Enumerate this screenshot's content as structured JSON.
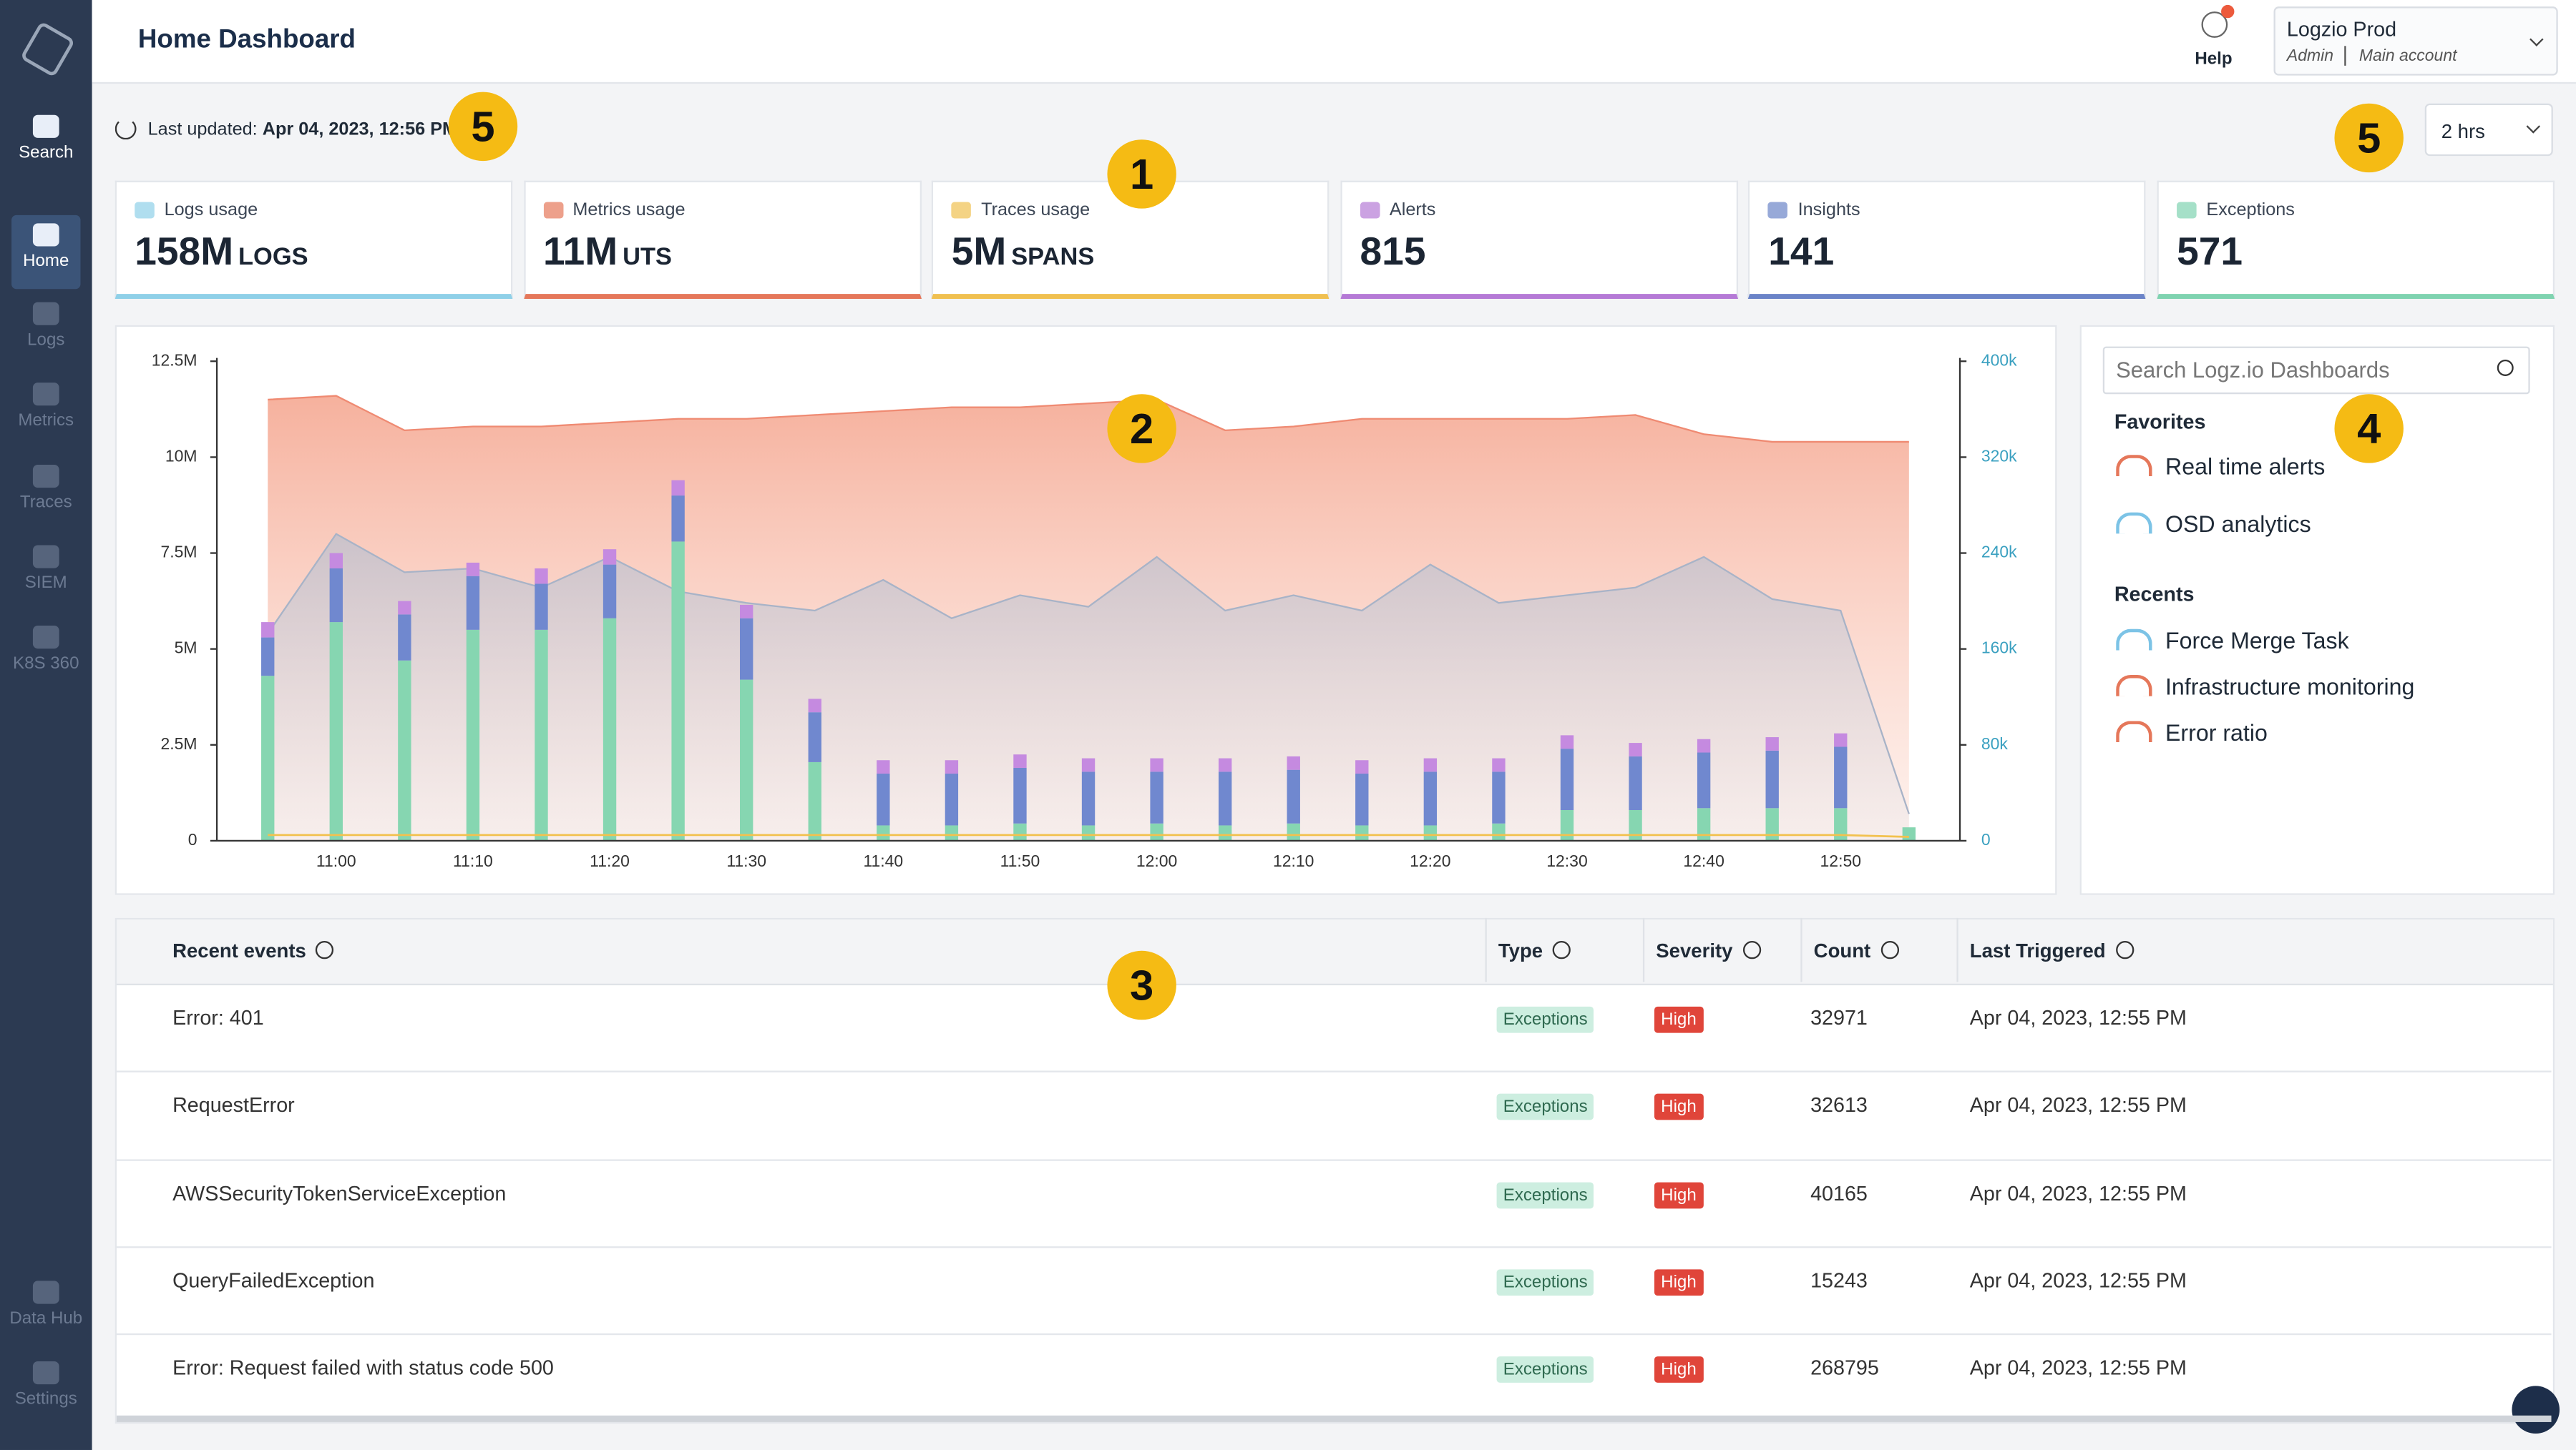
{
  "sidebar": {
    "items": [
      "Search",
      "Home",
      "Logs",
      "Metrics",
      "Traces",
      "SIEM",
      "K8S 360",
      "Data Hub",
      "Settings"
    ]
  },
  "header": {
    "title": "Home Dashboard",
    "help": "Help",
    "account": "Logzio Prod",
    "role": "Admin",
    "account_type": "Main account"
  },
  "toolbar": {
    "last_updated_label": "Last updated:",
    "last_updated": "Apr 04, 2023, 12:56 PM",
    "time_range": "2 hrs"
  },
  "stats": [
    {
      "label": "Logs usage",
      "value": "158M",
      "unit": "LOGS"
    },
    {
      "label": "Metrics usage",
      "value": "11M",
      "unit": "UTS"
    },
    {
      "label": "Traces usage",
      "value": "5M",
      "unit": "SPANS"
    },
    {
      "label": "Alerts",
      "value": "815"
    },
    {
      "label": "Insights",
      "value": "141"
    },
    {
      "label": "Exceptions",
      "value": "571"
    }
  ],
  "chart_data": {
    "type": "bar",
    "stacked": true,
    "categories": [
      null,
      "11:00",
      null,
      "11:10",
      null,
      "11:20",
      null,
      "11:30",
      null,
      "11:40",
      null,
      "11:50",
      null,
      "12:00",
      null,
      "12:10",
      null,
      "12:20",
      null,
      "12:30",
      null,
      "12:40",
      null,
      "12:50",
      null
    ],
    "series": [
      {
        "color": "#86d6b1",
        "values": [
          4300000,
          5700000,
          4700000,
          5500000,
          5500000,
          5800000,
          7800000,
          4200000,
          2050000,
          400000,
          400000,
          450000,
          400000,
          450000,
          400000,
          450000,
          400000,
          400000,
          450000,
          800000,
          800000,
          850000,
          850000,
          850000,
          350000
        ]
      },
      {
        "color": "#7088cf",
        "values": [
          1000000,
          1400000,
          1200000,
          1400000,
          1200000,
          1400000,
          1200000,
          1600000,
          1300000,
          1350000,
          1350000,
          1450000,
          1400000,
          1350000,
          1400000,
          1400000,
          1350000,
          1400000,
          1350000,
          1600000,
          1400000,
          1450000,
          1500000,
          1600000,
          0
        ]
      },
      {
        "color": "#c58ae0",
        "values": [
          400000,
          400000,
          350000,
          350000,
          400000,
          400000,
          400000,
          350000,
          350000,
          350000,
          350000,
          350000,
          350000,
          350000,
          350000,
          350000,
          350000,
          350000,
          350000,
          350000,
          350000,
          350000,
          350000,
          350000,
          0
        ]
      }
    ],
    "areas": [
      {
        "color": "#ef8a72",
        "values": [
          11500000,
          11600000,
          10700000,
          10800000,
          10800000,
          10900000,
          11000000,
          11000000,
          11100000,
          11200000,
          11300000,
          11300000,
          11400000,
          11500000,
          10700000,
          10800000,
          11000000,
          11000000,
          11000000,
          11000000,
          11100000,
          10600000,
          10400000,
          10400000,
          10400000
        ]
      },
      {
        "color": "#a8b3c7",
        "values": [
          5400000,
          8000000,
          7000000,
          7100000,
          6600000,
          7400000,
          6500000,
          6200000,
          6000000,
          6800000,
          5800000,
          6400000,
          6100000,
          7400000,
          6000000,
          6400000,
          6000000,
          7200000,
          6200000,
          6400000,
          6600000,
          7400000,
          6300000,
          6000000,
          700000
        ]
      }
    ],
    "lines": [
      {
        "color": "#f2c14e",
        "values": [
          150000,
          150000,
          150000,
          150000,
          150000,
          150000,
          150000,
          150000,
          150000,
          150000,
          150000,
          150000,
          150000,
          150000,
          150000,
          150000,
          150000,
          150000,
          150000,
          150000,
          150000,
          150000,
          150000,
          150000,
          100000
        ]
      }
    ],
    "ylim": [
      0,
      12500000
    ],
    "yticks": [
      0,
      {
        "value": 2500000,
        "label": "2.5M"
      },
      {
        "value": 5000000,
        "label": "5M"
      },
      {
        "value": 7500000,
        "label": "7.5M"
      },
      {
        "value": 10000000,
        "label": "10M"
      },
      {
        "value": 12500000,
        "label": "12.5M"
      }
    ],
    "y2lim": [
      0,
      400000
    ],
    "y2ticks": [
      0,
      {
        "value": 80000,
        "label": "80k"
      },
      {
        "value": 160000,
        "label": "160k"
      },
      {
        "value": 240000,
        "label": "240k"
      },
      {
        "value": 320000,
        "label": "320k"
      },
      {
        "value": 400000,
        "label": "400k"
      }
    ]
  },
  "dashboards": {
    "search_placeholder": "Search Logz.io Dashboards",
    "favorites_title": "Favorites",
    "favorites": [
      "Real time alerts",
      "OSD analytics"
    ],
    "recents_title": "Recents",
    "recents": [
      "Force Merge Task",
      "Infrastructure monitoring",
      "Error ratio"
    ]
  },
  "table": {
    "columns": [
      "Recent events",
      "Type",
      "Severity",
      "Count",
      "Last Triggered"
    ],
    "rows": [
      [
        "Error: 401",
        "Exceptions",
        "High",
        32971,
        "Apr 04, 2023, 12:55 PM"
      ],
      [
        "RequestError",
        "Exceptions",
        "High",
        32613,
        "Apr 04, 2023, 12:55 PM"
      ],
      [
        "AWSSecurityTokenServiceException",
        "Exceptions",
        "High",
        40165,
        "Apr 04, 2023, 12:55 PM"
      ],
      [
        "QueryFailedException",
        "Exceptions",
        "High",
        15243,
        "Apr 04, 2023, 12:55 PM"
      ],
      [
        "Error: Request failed with status code 500",
        "Exceptions",
        "High",
        268795,
        "Apr 04, 2023, 12:55 PM"
      ]
    ]
  },
  "annotations": [
    5,
    1,
    2,
    3,
    4,
    5
  ]
}
